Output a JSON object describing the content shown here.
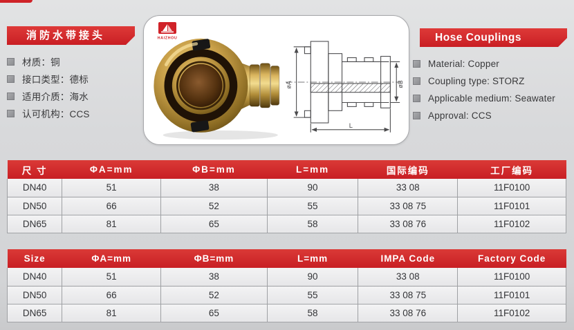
{
  "colors": {
    "accent_red": "#cf2228",
    "table_header_red": "#d02629",
    "page_bg": "#d8d9db"
  },
  "left_panel": {
    "title": "消防水带接头",
    "specs": [
      {
        "label": "材质：铜"
      },
      {
        "label": "接口类型：德标"
      },
      {
        "label": "适用介质：海水"
      },
      {
        "label": "认可机构：CCS"
      }
    ]
  },
  "right_panel": {
    "title": "Hose Couplings",
    "specs": [
      {
        "label": "Material: Copper"
      },
      {
        "label": "Coupling type: STORZ"
      },
      {
        "label": "Applicable medium: Seawater"
      },
      {
        "label": "Approval: CCS"
      }
    ]
  },
  "product_card": {
    "logo_text": "HAIZHOU",
    "drawing": {
      "dim_a": "øA",
      "dim_b": "øB",
      "dim_l": "L"
    }
  },
  "tables": [
    {
      "title": "chinese-size-table",
      "headers": [
        "尺 寸",
        "ΦA=mm",
        "ΦB=mm",
        "L=mm",
        "国际编码",
        "工厂编码"
      ],
      "rows": [
        [
          "DN40",
          "51",
          "38",
          "90",
          "33 08",
          "11F0100"
        ],
        [
          "DN50",
          "66",
          "52",
          "55",
          "33 08 75",
          "11F0101"
        ],
        [
          "DN65",
          "81",
          "65",
          "58",
          "33 08 76",
          "11F0102"
        ]
      ]
    },
    {
      "title": "english-size-table",
      "headers": [
        "Size",
        "ΦA=mm",
        "ΦB=mm",
        "L=mm",
        "IMPA Code",
        "Factory Code"
      ],
      "rows": [
        [
          "DN40",
          "51",
          "38",
          "90",
          "33 08",
          "11F0100"
        ],
        [
          "DN50",
          "66",
          "52",
          "55",
          "33 08 75",
          "11F0101"
        ],
        [
          "DN65",
          "81",
          "65",
          "58",
          "33 08 76",
          "11F0102"
        ]
      ]
    }
  ]
}
